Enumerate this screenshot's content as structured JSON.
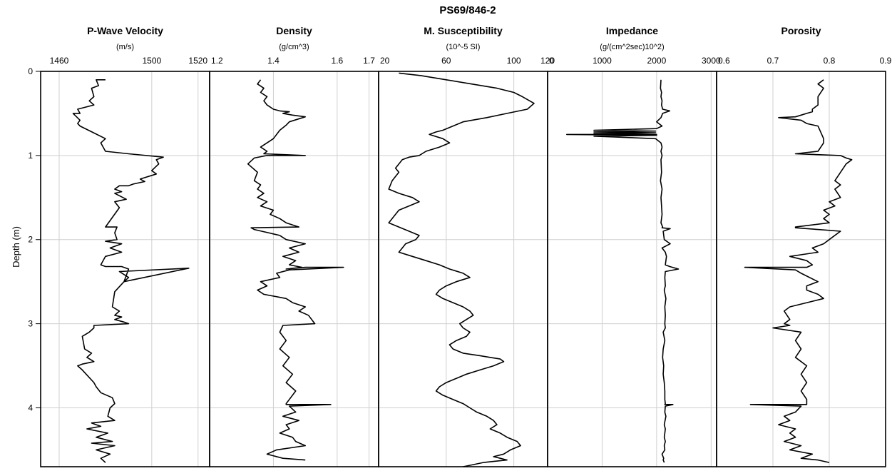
{
  "figure_title": "PS69/846-2",
  "y_axis": {
    "label": "Depth (m)",
    "range": [
      0,
      4.7
    ],
    "ticks": [
      "0",
      "1",
      "2",
      "3",
      "4"
    ]
  },
  "chart_data": [
    {
      "type": "line",
      "title": "P-Wave Velocity",
      "unit": "(m/s)",
      "xlim": [
        1452,
        1525
      ],
      "x_ticks": [
        1460,
        1500,
        1520
      ],
      "x_tick_labels": [
        "1460",
        "1500",
        "1520"
      ],
      "grid": true,
      "series": [
        {
          "x": [
            1480,
            1476,
            1477,
            1474,
            1475,
            1473,
            1475,
            1468,
            1469,
            1466,
            1469,
            1468,
            1469,
            1480,
            1478,
            1480,
            1490,
            1505,
            1502,
            1503,
            1500,
            1502,
            1495,
            1497,
            1492,
            1490,
            1486,
            1484,
            1487,
            1484,
            1489,
            1484,
            1486,
            1480,
            1485,
            1484,
            1485,
            1480,
            1487,
            1482,
            1487,
            1480,
            1478,
            1480,
            1487,
            1490,
            1488,
            1516,
            1486,
            1490,
            1488,
            1484,
            1483,
            1486,
            1484,
            1487,
            1484,
            1488,
            1490,
            1475,
            1475,
            1473,
            1470,
            1471,
            1474,
            1472,
            1475,
            1470,
            1468,
            1470,
            1475,
            1476,
            1478,
            1483,
            1484,
            1482,
            1481,
            1484,
            1474,
            1476,
            1478,
            1472,
            1481,
            1476,
            1483,
            1474,
            1484,
            1476,
            1482,
            1478,
            1480
          ],
          "y": [
            0.1,
            0.1,
            0.17,
            0.2,
            0.3,
            0.35,
            0.4,
            0.45,
            0.5,
            0.5,
            0.58,
            0.62,
            0.65,
            0.8,
            0.85,
            0.95,
            0.98,
            1.02,
            1.05,
            1.1,
            1.18,
            1.22,
            1.28,
            1.31,
            1.34,
            1.36,
            1.36,
            1.4,
            1.43,
            1.45,
            1.52,
            1.55,
            1.62,
            1.85,
            1.85,
            1.92,
            2.0,
            2.02,
            2.05,
            2.1,
            2.15,
            2.2,
            2.3,
            2.32,
            2.32,
            2.35,
            2.5,
            2.34,
            2.38,
            2.45,
            2.5,
            2.62,
            2.8,
            2.85,
            2.9,
            2.92,
            2.95,
            2.98,
            3.0,
            3.02,
            3.05,
            3.1,
            3.15,
            3.3,
            3.35,
            3.4,
            3.45,
            3.48,
            3.5,
            3.55,
            3.7,
            3.75,
            3.82,
            3.88,
            3.95,
            4.0,
            4.1,
            4.15,
            4.18,
            4.2,
            4.22,
            4.25,
            4.3,
            4.35,
            4.4,
            4.42,
            4.45,
            4.5,
            4.55,
            4.6,
            4.65
          ]
        }
      ]
    },
    {
      "type": "line",
      "title": "Density",
      "unit": "(g/cm^3)",
      "xlim": [
        1.2,
        1.73
      ],
      "x_ticks": [
        1.2,
        1.4,
        1.6,
        1.7
      ],
      "x_tick_labels": [
        "1.2",
        "1.4",
        "1.6",
        "1.7"
      ],
      "grid": true,
      "series": [
        {
          "x": [
            1.36,
            1.35,
            1.37,
            1.36,
            1.38,
            1.37,
            1.38,
            1.4,
            1.42,
            1.45,
            1.43,
            1.46,
            1.5,
            1.45,
            1.44,
            1.42,
            1.4,
            1.38,
            1.36,
            1.38,
            1.37,
            1.5,
            1.38,
            1.34,
            1.32,
            1.35,
            1.34,
            1.36,
            1.35,
            1.37,
            1.35,
            1.38,
            1.36,
            1.4,
            1.39,
            1.42,
            1.44,
            1.48,
            1.33,
            1.34,
            1.42,
            1.44,
            1.5,
            1.45,
            1.48,
            1.43,
            1.47,
            1.45,
            1.49,
            1.44,
            1.5,
            1.62,
            1.45,
            1.41,
            1.42,
            1.36,
            1.38,
            1.35,
            1.37,
            1.44,
            1.46,
            1.5,
            1.48,
            1.51,
            1.53,
            1.43,
            1.42,
            1.44,
            1.42,
            1.45,
            1.43,
            1.46,
            1.44,
            1.47,
            1.45,
            1.44,
            1.44,
            1.45,
            1.46,
            1.48,
            1.51,
            1.58,
            1.45,
            1.47,
            1.43,
            1.48,
            1.44,
            1.45,
            1.42,
            1.46,
            1.47,
            1.5,
            1.41,
            1.38,
            1.43,
            1.5
          ],
          "y": [
            0.1,
            0.15,
            0.2,
            0.25,
            0.3,
            0.35,
            0.4,
            0.45,
            0.47,
            0.48,
            0.5,
            0.52,
            0.54,
            0.6,
            0.64,
            0.7,
            0.8,
            0.85,
            0.9,
            0.95,
            0.98,
            1.0,
            1.0,
            1.03,
            1.1,
            1.2,
            1.3,
            1.35,
            1.4,
            1.45,
            1.5,
            1.55,
            1.6,
            1.65,
            1.7,
            1.75,
            1.8,
            1.85,
            1.86,
            1.88,
            1.95,
            2.0,
            2.05,
            2.1,
            2.15,
            2.2,
            2.25,
            2.3,
            2.33,
            2.35,
            2.33,
            2.33,
            2.36,
            2.4,
            2.45,
            2.5,
            2.55,
            2.6,
            2.65,
            2.7,
            2.75,
            2.8,
            2.85,
            2.9,
            3.0,
            3.02,
            3.1,
            3.2,
            3.3,
            3.4,
            3.5,
            3.6,
            3.7,
            3.8,
            3.9,
            3.95,
            3.96,
            3.96,
            3.96,
            3.96,
            3.96,
            3.96,
            3.98,
            4.05,
            4.1,
            4.15,
            4.2,
            4.25,
            4.3,
            4.35,
            4.4,
            4.45,
            4.5,
            4.55,
            4.6,
            4.62
          ]
        }
      ]
    },
    {
      "type": "line",
      "title": "M. Susceptibility",
      "unit": "(10^-5 SI)",
      "xlim": [
        20,
        120
      ],
      "x_ticks": [
        20,
        60,
        100,
        120
      ],
      "x_tick_labels": [
        "20",
        "60",
        "100",
        "120"
      ],
      "grid": true,
      "series": [
        {
          "x": [
            32,
            45,
            60,
            75,
            90,
            100,
            105,
            112,
            108,
            96,
            84,
            70,
            64,
            58,
            54,
            50,
            58,
            62,
            56,
            48,
            44,
            38,
            34,
            32,
            30,
            32,
            30,
            28,
            26,
            32,
            40,
            44,
            38,
            32,
            30,
            28,
            26,
            32,
            38,
            44,
            42,
            36,
            34,
            32,
            40,
            48,
            56,
            62,
            70,
            74,
            66,
            60,
            56,
            54,
            58,
            64,
            70,
            74,
            76,
            72,
            68,
            70,
            74,
            72,
            66,
            62,
            64,
            70,
            80,
            86,
            92,
            94,
            88,
            80,
            72,
            66,
            60,
            56,
            54,
            58,
            64,
            70,
            74,
            78,
            84,
            88,
            90,
            86,
            92,
            96,
            102,
            104,
            98,
            94,
            88,
            92,
            96,
            82,
            70
          ],
          "y": [
            0.02,
            0.05,
            0.1,
            0.15,
            0.2,
            0.25,
            0.3,
            0.38,
            0.45,
            0.5,
            0.55,
            0.6,
            0.65,
            0.7,
            0.72,
            0.75,
            0.8,
            0.85,
            0.9,
            0.95,
            1.0,
            1.02,
            1.05,
            1.1,
            1.15,
            1.2,
            1.25,
            1.3,
            1.4,
            1.45,
            1.5,
            1.55,
            1.6,
            1.65,
            1.7,
            1.75,
            1.8,
            1.85,
            1.9,
            1.95,
            2.0,
            2.05,
            2.1,
            2.15,
            2.2,
            2.25,
            2.3,
            2.35,
            2.4,
            2.45,
            2.5,
            2.55,
            2.6,
            2.65,
            2.7,
            2.75,
            2.8,
            2.85,
            2.9,
            2.95,
            3.0,
            3.05,
            3.1,
            3.15,
            3.2,
            3.25,
            3.3,
            3.35,
            3.38,
            3.4,
            3.42,
            3.45,
            3.5,
            3.55,
            3.6,
            3.65,
            3.7,
            3.75,
            3.8,
            3.85,
            3.9,
            3.95,
            4.0,
            4.05,
            4.1,
            4.15,
            4.2,
            4.25,
            4.3,
            4.35,
            4.4,
            4.45,
            4.5,
            4.55,
            4.58,
            4.6,
            4.62,
            4.65,
            4.7
          ]
        }
      ]
    },
    {
      "type": "line",
      "title": "Impedance",
      "unit": "(g/(cm^2sec)10^2)",
      "xlim": [
        0,
        3100
      ],
      "x_ticks": [
        0,
        1000,
        2000,
        3000
      ],
      "x_tick_labels": [
        "0",
        "1000",
        "2000",
        "3000"
      ],
      "grid": true,
      "series": [
        {
          "x": [
            2080,
            2070,
            2090,
            2080,
            2100,
            2090,
            2110,
            2240,
            2110,
            2080,
            2000,
            2100,
            2000,
            850,
            1980,
            850,
            1980,
            850,
            2000,
            350,
            2000,
            850,
            1980,
            2080,
            2100,
            2080,
            2100,
            2080,
            2090,
            2070,
            2100,
            2080,
            2090,
            2100,
            2080,
            2110,
            2100,
            2250,
            2120,
            2140,
            2250,
            2100,
            2160,
            2180,
            2160,
            2240,
            2400,
            2160,
            2150,
            2160,
            2140,
            2170,
            2150,
            2160,
            2150,
            2160,
            2120,
            2150,
            2120,
            2110,
            2130,
            2120,
            2140,
            2150,
            2150,
            2160,
            2150,
            2170,
            2160,
            2300,
            2160,
            2150,
            2170,
            2140,
            2160,
            2150,
            2140,
            2160,
            2140,
            2150,
            2100,
            2130,
            2120,
            2140
          ],
          "y": [
            0.1,
            0.2,
            0.25,
            0.3,
            0.35,
            0.4,
            0.45,
            0.47,
            0.5,
            0.55,
            0.6,
            0.65,
            0.68,
            0.7,
            0.71,
            0.72,
            0.73,
            0.74,
            0.75,
            0.75,
            0.76,
            0.77,
            0.8,
            0.85,
            0.9,
            0.95,
            1.0,
            1.05,
            1.2,
            1.3,
            1.4,
            1.5,
            1.6,
            1.7,
            1.8,
            1.85,
            1.86,
            1.87,
            1.9,
            2.0,
            2.05,
            2.1,
            2.15,
            2.2,
            2.3,
            2.32,
            2.35,
            2.38,
            2.45,
            2.55,
            2.6,
            2.7,
            2.8,
            2.9,
            3.0,
            3.05,
            3.1,
            3.2,
            3.3,
            3.4,
            3.5,
            3.6,
            3.7,
            3.8,
            3.9,
            3.95,
            3.96,
            3.96,
            3.96,
            3.96,
            3.98,
            4.05,
            4.1,
            4.2,
            4.25,
            4.3,
            4.35,
            4.4,
            4.45,
            4.5,
            4.55,
            4.6,
            4.62,
            4.65
          ]
        }
      ]
    },
    {
      "type": "line",
      "title": "Porosity",
      "unit": "",
      "xlim": [
        0.6,
        0.9
      ],
      "x_ticks": [
        0.6,
        0.7,
        0.8,
        0.9
      ],
      "x_tick_labels": [
        "0.6",
        "0.7",
        "0.8",
        "0.9"
      ],
      "grid": true,
      "series": [
        {
          "x": [
            0.79,
            0.78,
            0.79,
            0.78,
            0.78,
            0.77,
            0.77,
            0.76,
            0.75,
            0.74,
            0.71,
            0.75,
            0.76,
            0.78,
            0.79,
            0.79,
            0.78,
            0.74,
            0.82,
            0.83,
            0.84,
            0.83,
            0.82,
            0.81,
            0.82,
            0.81,
            0.82,
            0.8,
            0.81,
            0.79,
            0.8,
            0.79,
            0.8,
            0.74,
            0.74,
            0.78,
            0.82,
            0.8,
            0.79,
            0.77,
            0.78,
            0.73,
            0.76,
            0.77,
            0.76,
            0.74,
            0.65,
            0.74,
            0.75,
            0.78,
            0.76,
            0.76,
            0.78,
            0.79,
            0.73,
            0.72,
            0.73,
            0.72,
            0.73,
            0.7,
            0.75,
            0.74,
            0.75,
            0.74,
            0.76,
            0.75,
            0.76,
            0.75,
            0.76,
            0.76,
            0.76,
            0.76,
            0.66,
            0.75,
            0.74,
            0.72,
            0.73,
            0.71,
            0.74,
            0.73,
            0.74,
            0.72,
            0.75,
            0.73,
            0.77,
            0.75,
            0.78,
            0.8
          ],
          "y": [
            0.1,
            0.15,
            0.2,
            0.3,
            0.4,
            0.45,
            0.48,
            0.5,
            0.52,
            0.54,
            0.55,
            0.58,
            0.62,
            0.65,
            0.8,
            0.85,
            0.95,
            0.98,
            1.0,
            1.03,
            1.05,
            1.1,
            1.2,
            1.3,
            1.35,
            1.4,
            1.5,
            1.55,
            1.6,
            1.65,
            1.7,
            1.75,
            1.8,
            1.85,
            1.86,
            1.88,
            1.9,
            2.0,
            2.05,
            2.1,
            2.15,
            2.2,
            2.25,
            2.3,
            2.33,
            2.33,
            2.33,
            2.36,
            2.4,
            2.5,
            2.55,
            2.6,
            2.65,
            2.7,
            2.8,
            2.85,
            2.95,
            3.0,
            3.02,
            3.05,
            3.1,
            3.2,
            3.3,
            3.4,
            3.5,
            3.6,
            3.7,
            3.8,
            3.9,
            3.95,
            3.96,
            3.96,
            3.96,
            3.98,
            4.05,
            4.1,
            4.15,
            4.2,
            4.25,
            4.3,
            4.35,
            4.4,
            4.45,
            4.5,
            4.55,
            4.6,
            4.62,
            4.65
          ]
        }
      ]
    }
  ]
}
